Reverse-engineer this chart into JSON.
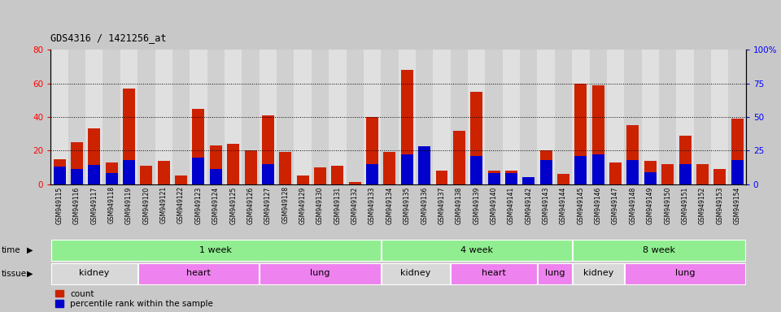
{
  "title": "GDS4316 / 1421256_at",
  "samples": [
    "GSM949115",
    "GSM949116",
    "GSM949117",
    "GSM949118",
    "GSM949119",
    "GSM949120",
    "GSM949121",
    "GSM949122",
    "GSM949123",
    "GSM949124",
    "GSM949125",
    "GSM949126",
    "GSM949127",
    "GSM949128",
    "GSM949129",
    "GSM949130",
    "GSM949131",
    "GSM949132",
    "GSM949133",
    "GSM949134",
    "GSM949135",
    "GSM949136",
    "GSM949137",
    "GSM949138",
    "GSM949139",
    "GSM949140",
    "GSM949141",
    "GSM949142",
    "GSM949143",
    "GSM949144",
    "GSM949145",
    "GSM949146",
    "GSM949147",
    "GSM949148",
    "GSM949149",
    "GSM949150",
    "GSM949151",
    "GSM949152",
    "GSM949153",
    "GSM949154"
  ],
  "count": [
    15,
    25,
    33,
    13,
    57,
    11,
    14,
    5,
    45,
    23,
    24,
    20,
    41,
    19,
    5,
    10,
    11,
    1,
    40,
    19,
    68,
    7,
    8,
    32,
    55,
    8,
    8,
    3,
    20,
    6,
    60,
    59,
    13,
    35,
    14,
    12,
    29,
    12,
    9,
    39
  ],
  "percentile": [
    13,
    11,
    14,
    8,
    18,
    0,
    0,
    0,
    20,
    11,
    0,
    0,
    15,
    0,
    0,
    0,
    0,
    0,
    15,
    0,
    22,
    28,
    0,
    0,
    21,
    8,
    8,
    5,
    18,
    0,
    21,
    22,
    0,
    18,
    9,
    0,
    15,
    0,
    0,
    18
  ],
  "time_groups": [
    {
      "label": "1 week",
      "start": 0,
      "end": 19
    },
    {
      "label": "4 week",
      "start": 19,
      "end": 30
    },
    {
      "label": "8 week",
      "start": 30,
      "end": 40
    }
  ],
  "tissue_groups": [
    {
      "label": "kidney",
      "start": 0,
      "end": 5,
      "fc": "#D8D8D8"
    },
    {
      "label": "heart",
      "start": 5,
      "end": 12,
      "fc": "#EE82EE"
    },
    {
      "label": "lung",
      "start": 12,
      "end": 19,
      "fc": "#EE82EE"
    },
    {
      "label": "kidney",
      "start": 19,
      "end": 23,
      "fc": "#D8D8D8"
    },
    {
      "label": "heart",
      "start": 23,
      "end": 28,
      "fc": "#EE82EE"
    },
    {
      "label": "lung",
      "start": 28,
      "end": 30,
      "fc": "#EE82EE"
    },
    {
      "label": "kidney",
      "start": 30,
      "end": 33,
      "fc": "#D8D8D8"
    },
    {
      "label": "lung",
      "start": 33,
      "end": 40,
      "fc": "#EE82EE"
    }
  ],
  "ylim_left": [
    0,
    80
  ],
  "ylim_right": [
    0,
    100
  ],
  "yticks_left": [
    0,
    20,
    40,
    60,
    80
  ],
  "yticks_right": [
    0,
    25,
    50,
    75,
    100
  ],
  "ytick_labels_right": [
    "0",
    "25",
    "50",
    "75",
    "100%"
  ],
  "bar_color_count": "#CC2200",
  "bar_color_pct": "#0000CC",
  "bg_color": "#C8C8C8",
  "plot_bg": "#E0E0E0",
  "col_bg_alt": "#D0D0D0",
  "time_color": "#90EE90",
  "grid_color": "#000000",
  "legend_count": "count",
  "legend_pct": "percentile rank within the sample"
}
